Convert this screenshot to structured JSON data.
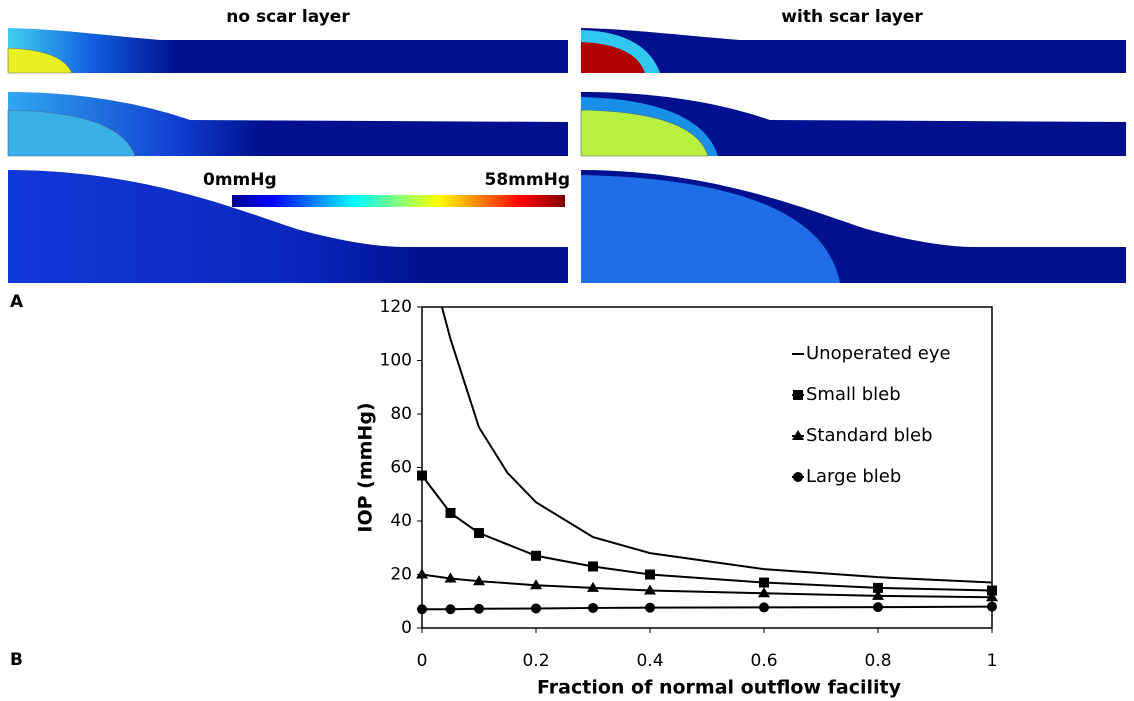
{
  "panel_a": {
    "label": "A",
    "titles": [
      "no scar layer",
      "with scar layer"
    ],
    "colorbar": {
      "min_label": "0mmHg",
      "max_label": "58mmHg"
    }
  },
  "panel_b_label": "B",
  "chart_data": {
    "type": "line",
    "xlabel": "Fraction of normal outflow facility",
    "ylabel": "IOP (mmHg)",
    "xlim": [
      0,
      1
    ],
    "ylim": [
      0,
      120
    ],
    "xticks": [
      0,
      0.2,
      0.4,
      0.6,
      0.8,
      1
    ],
    "yticks": [
      0,
      20,
      40,
      60,
      80,
      100,
      120
    ],
    "legend": "upper right",
    "series": [
      {
        "name": "Unoperated eye",
        "color": "#000000",
        "marker": "none",
        "x": [
          0.035,
          0.05,
          0.1,
          0.15,
          0.2,
          0.3,
          0.4,
          0.6,
          0.8,
          1
        ],
        "values": [
          120,
          108,
          75,
          58,
          47,
          34,
          28,
          22,
          19,
          17
        ]
      },
      {
        "name": "Small bleb",
        "color": "#000000",
        "marker": "square",
        "x": [
          0,
          0.05,
          0.1,
          0.2,
          0.3,
          0.4,
          0.6,
          0.8,
          1
        ],
        "values": [
          57,
          43,
          35.5,
          27,
          23,
          20,
          17,
          15,
          14
        ]
      },
      {
        "name": "Standard bleb",
        "color": "#000000",
        "marker": "triangle",
        "x": [
          0,
          0.05,
          0.1,
          0.2,
          0.3,
          0.4,
          0.6,
          0.8,
          1
        ],
        "values": [
          20,
          18.5,
          17.5,
          16,
          15,
          14,
          13,
          12,
          11.5
        ]
      },
      {
        "name": "Large bleb",
        "color": "#000000",
        "marker": "circle",
        "x": [
          0,
          0.05,
          0.1,
          0.2,
          0.3,
          0.4,
          0.6,
          0.8,
          1
        ],
        "values": [
          7,
          7,
          7.2,
          7.3,
          7.5,
          7.6,
          7.7,
          7.8,
          8
        ]
      }
    ]
  }
}
